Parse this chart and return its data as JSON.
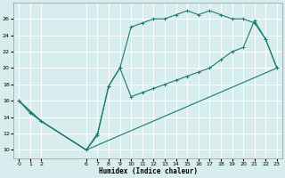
{
  "xlabel": "Humidex (Indice chaleur)",
  "bg_color": "#d8eeee",
  "line_color": "#1a7a6e",
  "grid_color": "#ffffff",
  "xlim": [
    -0.5,
    23.5
  ],
  "ylim": [
    9,
    28
  ],
  "xticks": [
    0,
    1,
    2,
    6,
    7,
    8,
    9,
    10,
    11,
    12,
    13,
    14,
    15,
    16,
    17,
    18,
    19,
    20,
    21,
    22,
    23
  ],
  "yticks": [
    10,
    12,
    14,
    16,
    18,
    20,
    22,
    24,
    26
  ],
  "curve1_x": [
    0,
    1,
    2,
    6,
    7,
    8,
    9,
    10,
    11,
    12,
    13,
    14,
    15,
    16,
    17,
    18,
    19,
    20,
    21,
    22,
    23
  ],
  "curve1_y": [
    16.0,
    14.5,
    13.5,
    10.0,
    12.0,
    17.8,
    20.0,
    25.0,
    25.5,
    26.0,
    26.0,
    26.5,
    27.0,
    26.5,
    27.0,
    26.5,
    26.0,
    26.0,
    25.5,
    23.5,
    20.0
  ],
  "curve2_x": [
    0,
    2,
    6,
    7,
    8,
    9,
    10,
    11,
    12,
    13,
    14,
    15,
    16,
    17,
    18,
    19,
    20,
    21,
    22,
    23
  ],
  "curve2_y": [
    16.0,
    13.5,
    10.0,
    11.8,
    17.8,
    20.0,
    16.5,
    17.0,
    17.5,
    18.0,
    18.5,
    19.0,
    19.5,
    20.0,
    21.0,
    22.0,
    22.5,
    25.8,
    23.5,
    20.0
  ],
  "curve3_x": [
    0,
    2,
    6,
    23
  ],
  "curve3_y": [
    16.0,
    13.5,
    10.0,
    20.0
  ]
}
